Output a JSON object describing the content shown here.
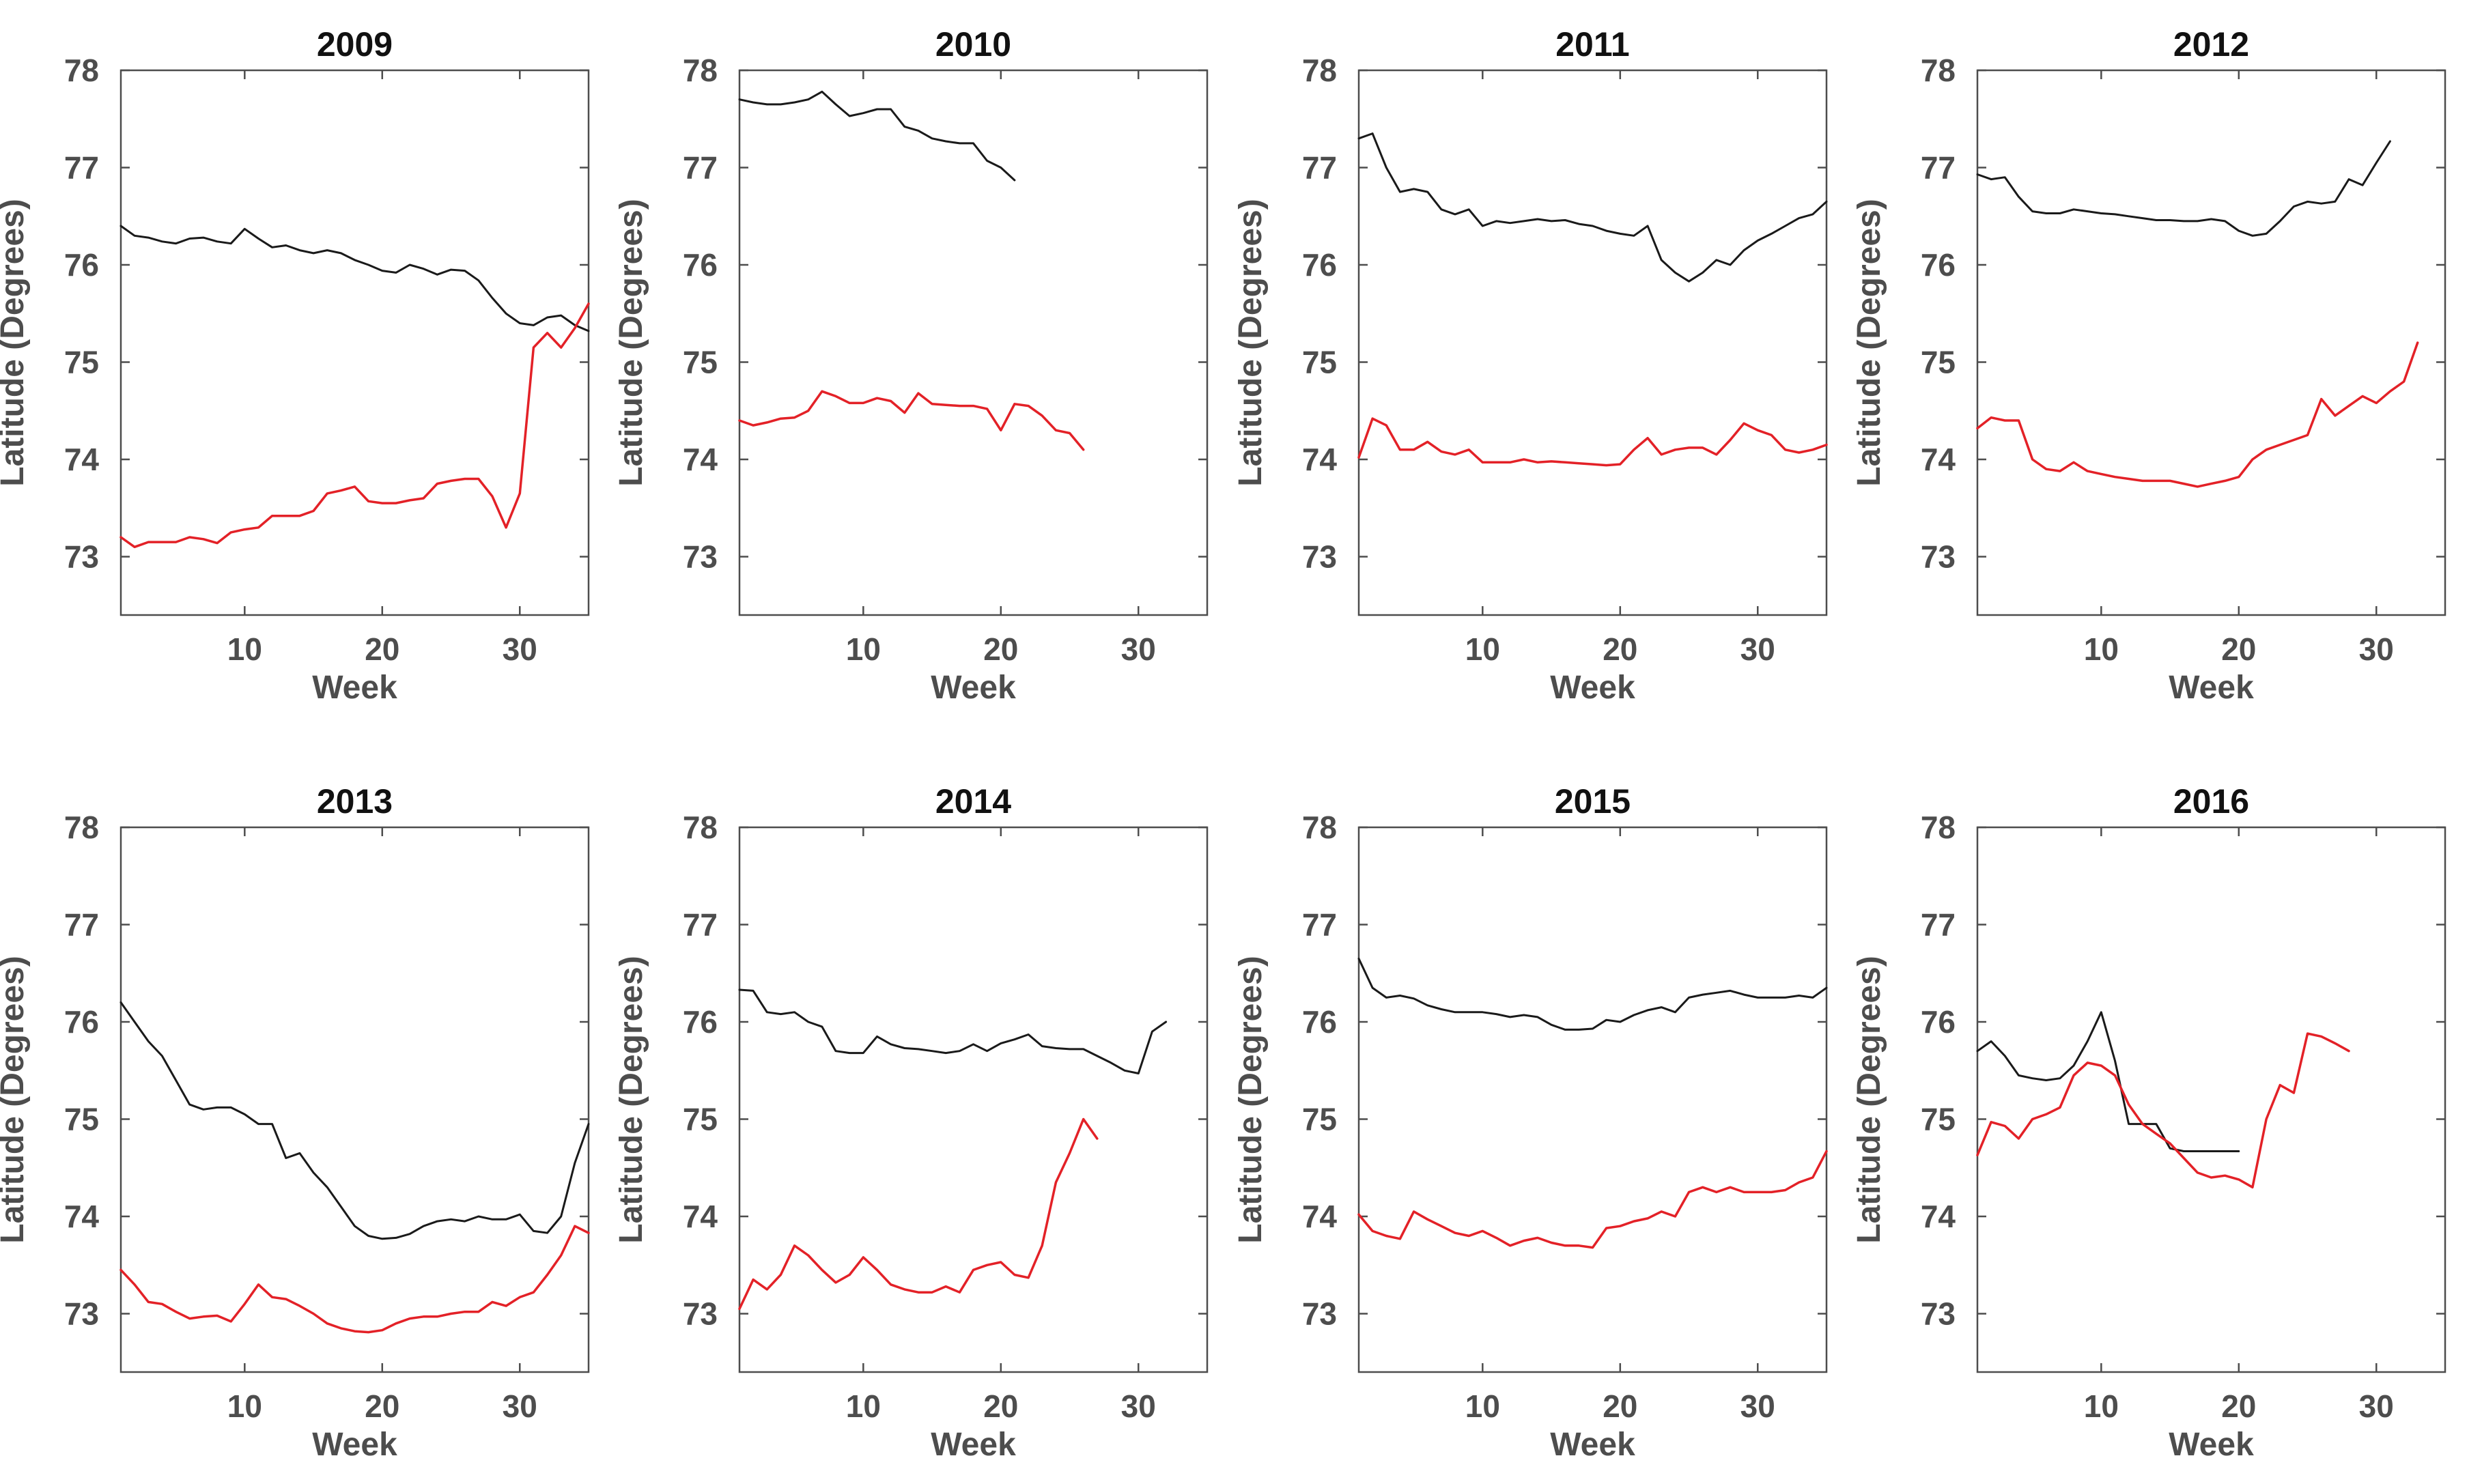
{
  "figure": {
    "background": "#ffffff",
    "axes_style": {
      "xlabel": "Week",
      "ylabel": "Latitude (Degrees)",
      "xticks": [
        10,
        20,
        30
      ],
      "yticks": [
        78,
        77,
        76,
        75,
        74,
        73
      ],
      "xlim": [
        1,
        35
      ],
      "ylim": [
        72.4,
        78
      ],
      "grid": false,
      "box": true,
      "tick_direction": "in"
    },
    "colors": {
      "black_series": "#1a1a1a",
      "red_series": "#e32127",
      "axis_line": "#4d4d4d",
      "tick_label": "#4d4d4d",
      "axis_label": "#4d4d4d",
      "title": "#111111"
    }
  },
  "chart_data": [
    {
      "type": "line",
      "title": "2009",
      "xlabel": "Week",
      "ylabel": "Latitude (Degrees)",
      "x_start": 1,
      "series": [
        {
          "name": "black_line",
          "color_key": "black_series",
          "values": [
            76.4,
            76.3,
            76.28,
            76.24,
            76.22,
            76.27,
            76.28,
            76.24,
            76.22,
            76.37,
            76.27,
            76.18,
            76.2,
            76.15,
            76.12,
            76.15,
            76.12,
            76.05,
            76.0,
            75.94,
            75.92,
            76.0,
            75.96,
            75.9,
            75.95,
            75.94,
            75.84,
            75.66,
            75.5,
            75.4,
            75.38,
            75.46,
            75.48,
            75.38,
            75.32
          ]
        },
        {
          "name": "red_line",
          "color_key": "red_series",
          "values": [
            73.2,
            73.1,
            73.15,
            73.15,
            73.15,
            73.2,
            73.18,
            73.14,
            73.25,
            73.28,
            73.3,
            73.42,
            73.42,
            73.42,
            73.47,
            73.65,
            73.68,
            73.72,
            73.57,
            73.55,
            73.55,
            73.58,
            73.6,
            73.75,
            73.78,
            73.8,
            73.8,
            73.62,
            73.3,
            73.65,
            75.15,
            75.3,
            75.15,
            75.35,
            75.6
          ]
        }
      ]
    },
    {
      "type": "line",
      "title": "2010",
      "xlabel": "Week",
      "ylabel": "Latitude (Degrees)",
      "x_start": 1,
      "series": [
        {
          "name": "black_line",
          "color_key": "black_series",
          "values": [
            77.7,
            77.67,
            77.65,
            77.65,
            77.67,
            77.7,
            77.78,
            77.65,
            77.53,
            77.56,
            77.6,
            77.6,
            77.42,
            77.38,
            77.3,
            77.27,
            77.25,
            77.25,
            77.07,
            77.0,
            76.87
          ]
        },
        {
          "name": "red_line",
          "color_key": "red_series",
          "values": [
            74.4,
            74.35,
            74.38,
            74.42,
            74.43,
            74.5,
            74.7,
            74.65,
            74.58,
            74.58,
            74.63,
            74.6,
            74.48,
            74.68,
            74.57,
            74.56,
            74.55,
            74.55,
            74.52,
            74.3,
            74.57,
            74.55,
            74.45,
            74.3,
            74.27,
            74.1
          ]
        }
      ]
    },
    {
      "type": "line",
      "title": "2011",
      "xlabel": "Week",
      "ylabel": "Latitude (Degrees)",
      "x_start": 1,
      "series": [
        {
          "name": "black_line",
          "color_key": "black_series",
          "values": [
            77.3,
            77.35,
            77.0,
            76.75,
            76.78,
            76.75,
            76.57,
            76.52,
            76.57,
            76.4,
            76.45,
            76.43,
            76.45,
            76.47,
            76.45,
            76.46,
            76.42,
            76.4,
            76.35,
            76.32,
            76.3,
            76.4,
            76.05,
            75.92,
            75.83,
            75.92,
            76.05,
            76.0,
            76.15,
            76.25,
            76.32,
            76.4,
            76.48,
            76.52,
            76.65
          ]
        },
        {
          "name": "red_line",
          "color_key": "red_series",
          "values": [
            74.02,
            74.42,
            74.35,
            74.1,
            74.1,
            74.18,
            74.08,
            74.05,
            74.1,
            73.97,
            73.97,
            73.97,
            74.0,
            73.97,
            73.98,
            73.97,
            73.96,
            73.95,
            73.94,
            73.95,
            74.1,
            74.22,
            74.05,
            74.1,
            74.12,
            74.12,
            74.05,
            74.2,
            74.37,
            74.3,
            74.25,
            74.1,
            74.07,
            74.1,
            74.15
          ]
        }
      ]
    },
    {
      "type": "line",
      "title": "2012",
      "xlabel": "Week",
      "ylabel": "Latitude (Degrees)",
      "x_start": 1,
      "series": [
        {
          "name": "black_line",
          "color_key": "black_series",
          "values": [
            76.93,
            76.88,
            76.9,
            76.7,
            76.55,
            76.53,
            76.53,
            76.57,
            76.55,
            76.53,
            76.52,
            76.5,
            76.48,
            76.46,
            76.46,
            76.45,
            76.45,
            76.47,
            76.45,
            76.35,
            76.3,
            76.32,
            76.45,
            76.6,
            76.65,
            76.63,
            76.65,
            76.88,
            76.82,
            77.05,
            77.27
          ]
        },
        {
          "name": "red_line",
          "color_key": "red_series",
          "values": [
            74.32,
            74.43,
            74.4,
            74.4,
            74.0,
            73.9,
            73.88,
            73.97,
            73.88,
            73.85,
            73.82,
            73.8,
            73.78,
            73.78,
            73.78,
            73.75,
            73.72,
            73.75,
            73.78,
            73.82,
            74.0,
            74.1,
            74.15,
            74.2,
            74.25,
            74.62,
            74.45,
            74.55,
            74.65,
            74.58,
            74.7,
            74.8,
            75.2
          ]
        }
      ]
    },
    {
      "type": "line",
      "title": "2013",
      "xlabel": "Week",
      "ylabel": "Latitude (Degrees)",
      "x_start": 1,
      "series": [
        {
          "name": "black_line",
          "color_key": "black_series",
          "values": [
            76.2,
            76.0,
            75.8,
            75.65,
            75.4,
            75.15,
            75.1,
            75.12,
            75.12,
            75.05,
            74.95,
            74.95,
            74.6,
            74.65,
            74.45,
            74.3,
            74.1,
            73.9,
            73.8,
            73.77,
            73.78,
            73.82,
            73.9,
            73.95,
            73.97,
            73.95,
            74.0,
            73.97,
            73.97,
            74.02,
            73.85,
            73.83,
            74.0,
            74.55,
            74.95
          ]
        },
        {
          "name": "red_line",
          "color_key": "red_series",
          "values": [
            73.45,
            73.3,
            73.12,
            73.1,
            73.02,
            72.95,
            72.97,
            72.98,
            72.92,
            73.1,
            73.3,
            73.17,
            73.15,
            73.08,
            73.0,
            72.9,
            72.85,
            72.82,
            72.81,
            72.83,
            72.9,
            72.95,
            72.97,
            72.97,
            73.0,
            73.02,
            73.02,
            73.12,
            73.08,
            73.17,
            73.22,
            73.4,
            73.6,
            73.9,
            73.83
          ]
        }
      ]
    },
    {
      "type": "line",
      "title": "2014",
      "xlabel": "Week",
      "ylabel": "Latitude (Degrees)",
      "x_start": 1,
      "series": [
        {
          "name": "black_line",
          "color_key": "black_series",
          "values": [
            76.33,
            76.32,
            76.1,
            76.08,
            76.1,
            76.0,
            75.95,
            75.7,
            75.68,
            75.68,
            75.85,
            75.77,
            75.73,
            75.72,
            75.7,
            75.68,
            75.7,
            75.77,
            75.7,
            75.78,
            75.82,
            75.87,
            75.75,
            75.73,
            75.72,
            75.72,
            75.65,
            75.58,
            75.5,
            75.47,
            75.9,
            76.0
          ]
        },
        {
          "name": "red_line",
          "color_key": "red_series",
          "values": [
            73.05,
            73.35,
            73.25,
            73.4,
            73.7,
            73.6,
            73.45,
            73.32,
            73.4,
            73.58,
            73.45,
            73.3,
            73.25,
            73.22,
            73.22,
            73.28,
            73.22,
            73.45,
            73.5,
            73.53,
            73.4,
            73.37,
            73.7,
            74.35,
            74.65,
            75.0,
            74.8
          ]
        }
      ]
    },
    {
      "type": "line",
      "title": "2015",
      "xlabel": "Week",
      "ylabel": "Latitude (Degrees)",
      "x_start": 1,
      "series": [
        {
          "name": "black_line",
          "color_key": "black_series",
          "values": [
            76.65,
            76.35,
            76.25,
            76.27,
            76.24,
            76.17,
            76.13,
            76.1,
            76.1,
            76.1,
            76.08,
            76.05,
            76.07,
            76.05,
            75.97,
            75.92,
            75.92,
            75.93,
            76.02,
            76.0,
            76.07,
            76.12,
            76.15,
            76.1,
            76.25,
            76.28,
            76.3,
            76.32,
            76.28,
            76.25,
            76.25,
            76.25,
            76.27,
            76.25,
            76.35
          ]
        },
        {
          "name": "red_line",
          "color_key": "red_series",
          "values": [
            74.02,
            73.85,
            73.8,
            73.77,
            74.05,
            73.97,
            73.9,
            73.83,
            73.8,
            73.85,
            73.78,
            73.7,
            73.75,
            73.78,
            73.73,
            73.7,
            73.7,
            73.68,
            73.88,
            73.9,
            73.95,
            73.98,
            74.05,
            74.0,
            74.25,
            74.3,
            74.25,
            74.3,
            74.25,
            74.25,
            74.25,
            74.27,
            74.35,
            74.4,
            74.67
          ]
        }
      ]
    },
    {
      "type": "line",
      "title": "2016",
      "xlabel": "Week",
      "ylabel": "Latitude (Degrees)",
      "x_start": 1,
      "series": [
        {
          "name": "black_line",
          "color_key": "black_series",
          "values": [
            75.7,
            75.8,
            75.65,
            75.45,
            75.42,
            75.4,
            75.42,
            75.55,
            75.8,
            76.1,
            75.6,
            74.95,
            74.95,
            74.95,
            74.7,
            74.67,
            74.67,
            74.67,
            74.67,
            74.67
          ]
        },
        {
          "name": "red_line",
          "color_key": "red_series",
          "values": [
            74.63,
            74.97,
            74.93,
            74.8,
            75.0,
            75.05,
            75.12,
            75.45,
            75.58,
            75.55,
            75.45,
            75.15,
            74.95,
            74.85,
            74.75,
            74.6,
            74.45,
            74.4,
            74.42,
            74.38,
            74.3,
            75.0,
            75.35,
            75.27,
            75.88,
            75.85,
            75.78,
            75.7
          ]
        }
      ]
    }
  ]
}
